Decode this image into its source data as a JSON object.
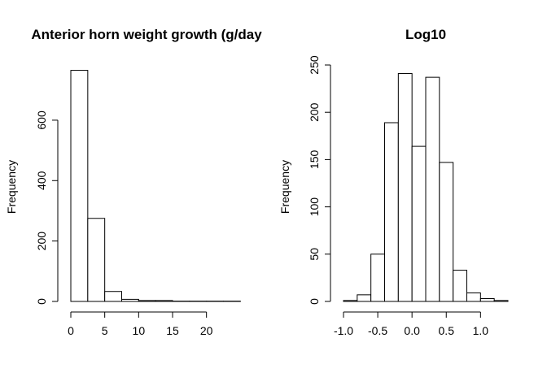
{
  "chart_data": [
    {
      "type": "bar",
      "title": "Anterior horn weight growth (g/day",
      "ylabel": "Frequency",
      "xlabel": "",
      "bin_edges": [
        0,
        2.5,
        5,
        7.5,
        10,
        12.5,
        15,
        17.5,
        20,
        22.5,
        25
      ],
      "values": [
        765,
        275,
        33,
        7,
        3,
        3,
        1,
        1,
        1,
        1
      ],
      "xlim": [
        0,
        24
      ],
      "x_ticks": [
        0,
        5,
        10,
        15,
        20
      ],
      "x_tick_labels": [
        "0",
        "5",
        "10",
        "15",
        "20"
      ],
      "ylim": [
        0,
        780
      ],
      "y_ticks": [
        0,
        200,
        400,
        600
      ],
      "y_tick_labels": [
        "0",
        "200",
        "400",
        "600"
      ]
    },
    {
      "type": "bar",
      "title": "Log10",
      "ylabel": "Frequency",
      "xlabel": "",
      "bin_edges": [
        -1.0,
        -0.8,
        -0.6,
        -0.4,
        -0.2,
        0.0,
        0.2,
        0.4,
        0.6,
        0.8,
        1.0,
        1.2,
        1.4
      ],
      "values": [
        1,
        7,
        50,
        189,
        241,
        164,
        237,
        147,
        33,
        9,
        3,
        1
      ],
      "xlim": [
        -1.0,
        1.4
      ],
      "x_ticks": [
        -1.0,
        -0.5,
        0.0,
        0.5,
        1.0
      ],
      "x_tick_labels": [
        "-1.0",
        "-0.5",
        "0.0",
        "0.5",
        "1.0"
      ],
      "ylim": [
        0,
        250
      ],
      "y_ticks": [
        0,
        50,
        100,
        150,
        200,
        250
      ],
      "y_tick_labels": [
        "0",
        "50",
        "100",
        "150",
        "200",
        "250"
      ]
    }
  ]
}
